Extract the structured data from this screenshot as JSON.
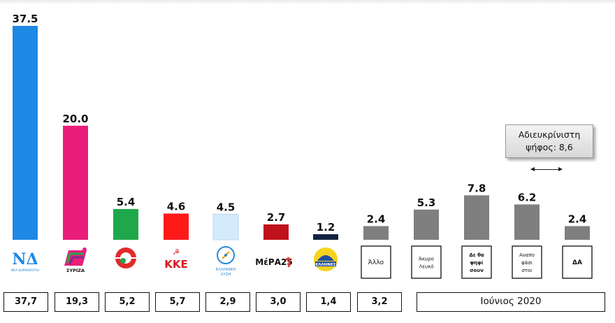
{
  "chart_data": {
    "type": "bar",
    "categories": [
      "ΝΔ",
      "ΣΥΡΙΖΑ",
      "ΚΙΝΑΛ",
      "ΚΚΕ",
      "Ελληνική Λύση",
      "ΜέΡΑ25",
      "Έλληνες",
      "Άλλο",
      "Άκυρο Λευκό",
      "Δε θα ψηφίσουν",
      "Αναποφάσιστοι",
      "ΔΑ"
    ],
    "values": [
      37.5,
      20.0,
      5.4,
      4.6,
      4.5,
      2.7,
      1.2,
      2.4,
      5.3,
      7.8,
      6.2,
      2.4
    ],
    "value_labels": [
      "37.5",
      "20.0",
      "5.4",
      "4.6",
      "4.5",
      "2.7",
      "1.2",
      "2.4",
      "5.3",
      "7.8",
      "6.2",
      "2.4"
    ],
    "colors": [
      "#1e88e5",
      "#e91e7a",
      "#1ea84b",
      "#ff1a1a",
      "#d4ebfb",
      "#c0121c",
      "#14233f",
      "#7f7f7f",
      "#7f7f7f",
      "#7f7f7f",
      "#7f7f7f",
      "#7f7f7f"
    ],
    "ylim": [
      0,
      40
    ],
    "grid": false,
    "legend": "none",
    "june_2020_values": [
      "37,7",
      "19,3",
      "5,2",
      "5,7",
      "2,9",
      "3,0",
      "1,4",
      "3,2"
    ],
    "june_2020_label": "Ιούνιος 2020",
    "note_lines": [
      "Αδιευκρίνιστη",
      "ψήφος: 8,6"
    ]
  },
  "party_logos": [
    {
      "icon": "nd-logo-icon",
      "text": "ΝΔ",
      "subtext": "ΝΕΑ ΔΗΜΟΚΡΑΤΙΑ"
    },
    {
      "icon": "syriza-logo-icon",
      "text": "ΣΥΡΙΖΑ"
    },
    {
      "icon": "kinal-logo-icon"
    },
    {
      "icon": "kke-logo-icon",
      "text": "ΚΚΕ"
    },
    {
      "icon": "elliniki-lysi-logo-icon",
      "text": "ΕΛΛΗΝΙΚΗ",
      "subtext": "ΛΥΣΗ"
    },
    {
      "icon": "mera25-logo-icon",
      "text": "ΜέΡΑ25"
    },
    {
      "icon": "ellines-logo-icon",
      "text": "ΕΛΛΗΝΕΣ"
    }
  ],
  "category_boxes": [
    {
      "lines": [
        "Άλλο"
      ]
    },
    {
      "lines": [
        "Άκυρο",
        "Λευκό"
      ]
    },
    {
      "lines": [
        "Δε θα",
        "ψηφί",
        "σουν"
      ]
    },
    {
      "lines": [
        "Αναπο",
        "φάσι",
        "στοι"
      ]
    },
    {
      "lines": [
        "ΔΑ"
      ]
    }
  ]
}
